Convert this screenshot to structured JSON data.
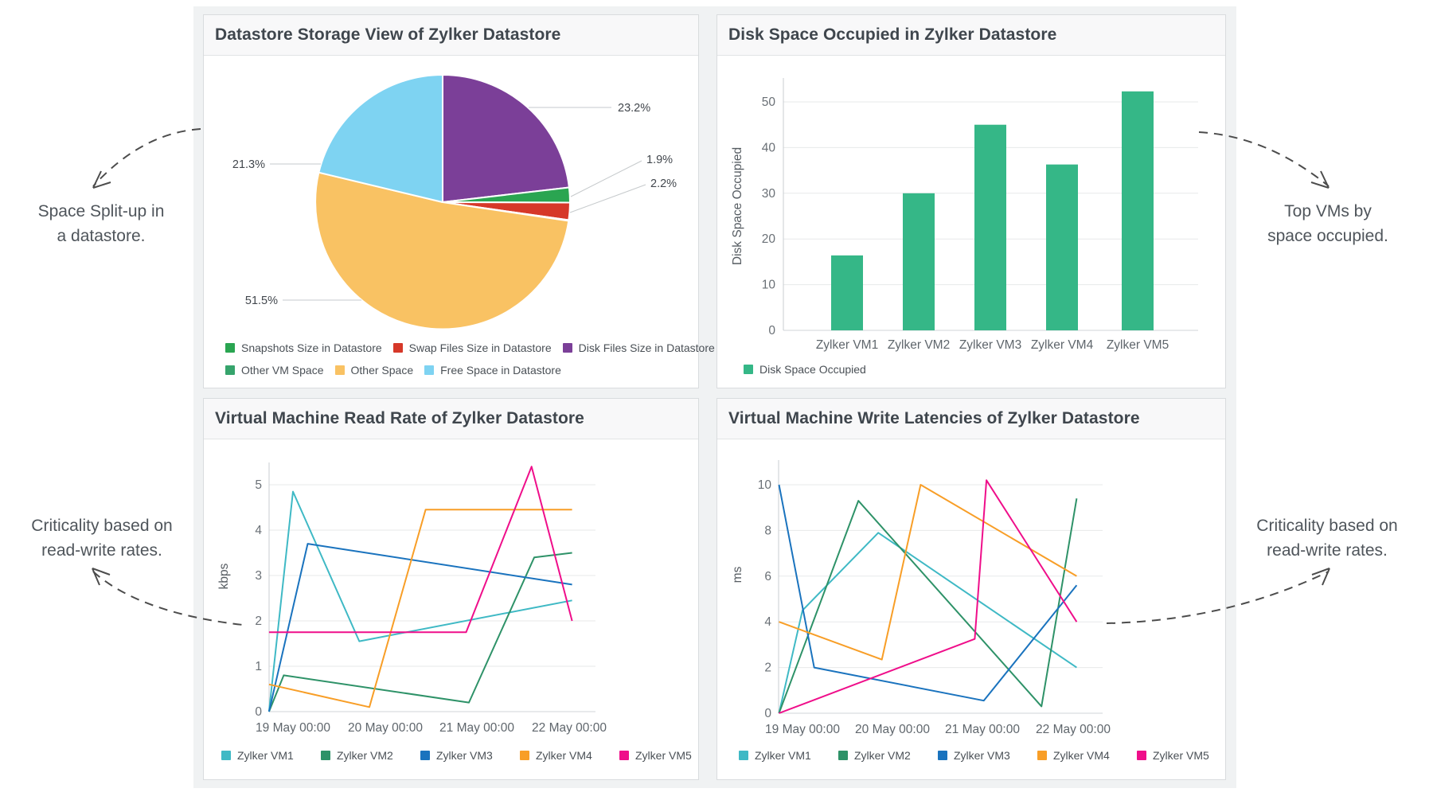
{
  "dashboard": {
    "annotations": {
      "top_left": {
        "line1": "Space Split-up in",
        "line2": "a datastore."
      },
      "top_right": {
        "line1": "Top VMs by",
        "line2": "space occupied."
      },
      "bottom_left": {
        "line1": "Criticality based on",
        "line2": "read-write rates."
      },
      "bottom_right": {
        "line1": "Criticality based on",
        "line2": "read-write rates."
      }
    },
    "colors": {
      "vm1": "#3fb9c5",
      "vm2": "#2e9268",
      "vm3": "#1a73be",
      "vm4": "#f89e27",
      "vm5": "#ef0e8a",
      "bar": "#35b787",
      "pie_purple": "#7b3f98",
      "pie_green": "#2aa551",
      "pie_red": "#d63829",
      "pie_teal": "#36a46c",
      "pie_orange": "#f9c263",
      "pie_blue": "#7ed3f2"
    }
  },
  "chart_data": [
    {
      "type": "pie",
      "title": "Datastore Storage View of Zylker Datastore",
      "slices": [
        {
          "label": "Disk Files Size in Datastore",
          "value": 23.2,
          "display": "23.2%",
          "color": "#7b3f98"
        },
        {
          "label": "Snapshots Size in Datastore",
          "value": 1.9,
          "display": "1.9%",
          "color": "#2aa551"
        },
        {
          "label": "Swap Files Size in Datastore",
          "value": 2.2,
          "display": "2.2%",
          "color": "#d63829"
        },
        {
          "label": "Other VM Space",
          "value": 0.1,
          "display": "",
          "color": "#36a46c"
        },
        {
          "label": "Other Space",
          "value": 51.5,
          "display": "51.5%",
          "color": "#f9c263"
        },
        {
          "label": "Free Space in Datastore",
          "value": 21.3,
          "display": "21.3%",
          "color": "#7ed3f2"
        }
      ],
      "legend_rows": [
        [
          {
            "label": "Snapshots Size in Datastore",
            "color": "#2aa551"
          },
          {
            "label": "Swap Files Size in Datastore",
            "color": "#d63829"
          },
          {
            "label": "Disk Files Size in Datastore",
            "color": "#7b3f98"
          }
        ],
        [
          {
            "label": "Other VM Space",
            "color": "#36a46c"
          },
          {
            "label": "Other Space",
            "color": "#f9c263"
          },
          {
            "label": "Free Space in Datastore",
            "color": "#7ed3f2"
          }
        ]
      ]
    },
    {
      "type": "bar",
      "title": "Disk Space Occupied in Zylker Datastore",
      "categories": [
        "Zylker VM1",
        "Zylker VM2",
        "Zylker VM3",
        "Zylker VM4",
        "Zylker VM5"
      ],
      "values": [
        16.4,
        30,
        45,
        36.3,
        52.3
      ],
      "ylabel": "Disk Space Occupied",
      "yticks": [
        0,
        10,
        20,
        30,
        40,
        50
      ],
      "ylim": [
        0,
        55
      ],
      "bar_color": "#35b787",
      "legend": [
        {
          "label": "Disk Space Occupied",
          "color": "#35b787"
        }
      ]
    },
    {
      "type": "line",
      "title": "Virtual Machine Read Rate of Zylker Datastore",
      "ylabel": "kbps",
      "yticks": [
        0,
        1,
        2,
        3,
        4,
        5
      ],
      "ylim": [
        0,
        5.2
      ],
      "x_ticks": [
        "19 May 00:00",
        "20 May 00:00",
        "21 May 00:00",
        "22 May 00:00"
      ],
      "series": [
        {
          "name": "Zylker VM1",
          "color": "#3fb9c5",
          "points": [
            [
              -0.26,
              0
            ],
            [
              0,
              4.85
            ],
            [
              0.72,
              1.55
            ],
            [
              3.03,
              2.45
            ]
          ]
        },
        {
          "name": "Zylker VM2",
          "color": "#2e9268",
          "points": [
            [
              -0.26,
              0
            ],
            [
              -0.1,
              0.8
            ],
            [
              1.91,
              0.2
            ],
            [
              2.62,
              3.4
            ],
            [
              3.03,
              3.5
            ]
          ]
        },
        {
          "name": "Zylker VM3",
          "color": "#1a73be",
          "points": [
            [
              -0.26,
              0
            ],
            [
              0.16,
              3.7
            ],
            [
              3.03,
              2.8
            ]
          ]
        },
        {
          "name": "Zylker VM4",
          "color": "#f89e27",
          "points": [
            [
              -0.26,
              0.6
            ],
            [
              0.83,
              0.1
            ],
            [
              1.44,
              4.45
            ],
            [
              3.03,
              4.45
            ]
          ]
        },
        {
          "name": "Zylker VM5",
          "color": "#ef0e8a",
          "points": [
            [
              -0.26,
              1.75
            ],
            [
              1.88,
              1.75
            ],
            [
              2.59,
              5.4
            ],
            [
              3.03,
              2.0
            ]
          ]
        }
      ]
    },
    {
      "type": "line",
      "title": "Virtual Machine Write Latencies of Zylker Datastore",
      "ylabel": "ms",
      "yticks": [
        0,
        2,
        4,
        6,
        8,
        10
      ],
      "ylim": [
        0,
        11
      ],
      "x_ticks": [
        "19 May 00:00",
        "20 May 00:00",
        "21 May 00:00",
        "22 May 00:00"
      ],
      "series": [
        {
          "name": "Zylker VM1",
          "color": "#3fb9c5",
          "points": [
            [
              -0.26,
              0
            ],
            [
              0,
              4.5
            ],
            [
              0.84,
              7.9
            ],
            [
              3.04,
              2.0
            ]
          ]
        },
        {
          "name": "Zylker VM2",
          "color": "#2e9268",
          "points": [
            [
              -0.26,
              0
            ],
            [
              0.62,
              9.3
            ],
            [
              2.65,
              0.3
            ],
            [
              3.04,
              9.4
            ]
          ]
        },
        {
          "name": "Zylker VM3",
          "color": "#1a73be",
          "points": [
            [
              -0.26,
              10
            ],
            [
              0.13,
              2.0
            ],
            [
              2.01,
              0.55
            ],
            [
              3.04,
              5.6
            ]
          ]
        },
        {
          "name": "Zylker VM4",
          "color": "#f89e27",
          "points": [
            [
              -0.26,
              4.0
            ],
            [
              0.88,
              2.35
            ],
            [
              1.31,
              10.0
            ],
            [
              3.04,
              6.0
            ]
          ]
        },
        {
          "name": "Zylker VM5",
          "color": "#ef0e8a",
          "points": [
            [
              -0.26,
              0
            ],
            [
              1.91,
              3.25
            ],
            [
              2.04,
              10.2
            ],
            [
              3.04,
              4.0
            ]
          ]
        }
      ]
    }
  ]
}
